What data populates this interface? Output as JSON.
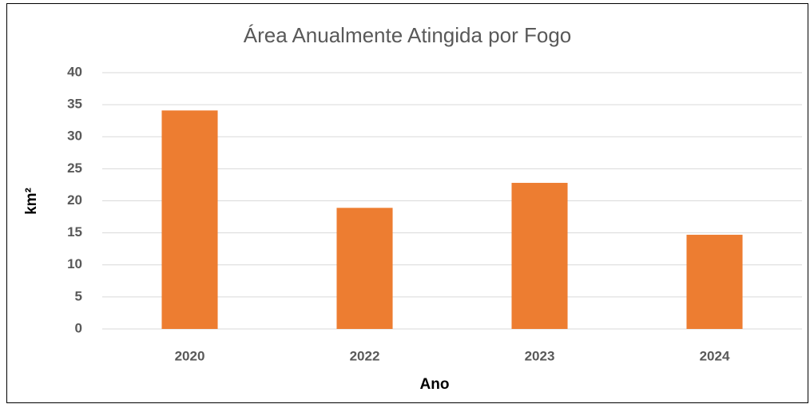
{
  "chart_data": {
    "type": "bar",
    "title": "Área Anualmente Atingida por Fogo",
    "x_label": "Ano",
    "y_label": "km²",
    "categories": [
      "2020",
      "2022",
      "2023",
      "2024"
    ],
    "values": [
      34.1,
      18.9,
      22.8,
      14.7
    ],
    "color": "#ed7d31",
    "ylim": [
      0,
      40
    ],
    "yticks": [
      0,
      5,
      10,
      15,
      20,
      25,
      30,
      35,
      40
    ],
    "grid": true
  }
}
